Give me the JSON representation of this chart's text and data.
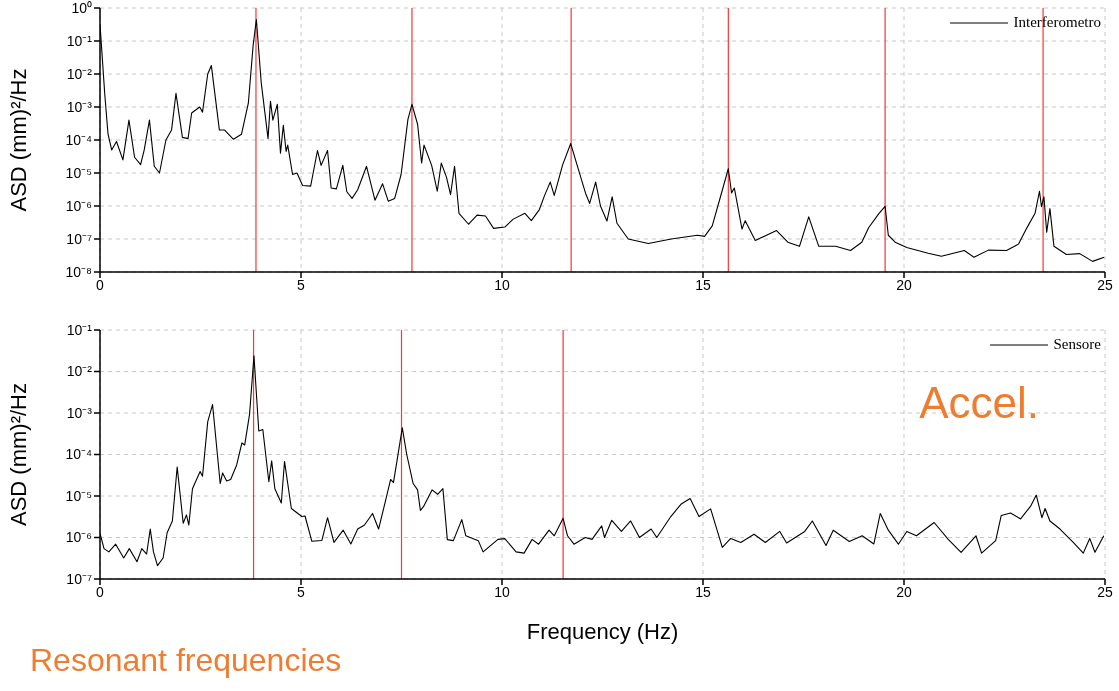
{
  "chart_data": [
    {
      "type": "line",
      "ylabel": "ASD (mm)²/Hz",
      "xlim": [
        0,
        25
      ],
      "xticks": [
        0,
        5,
        10,
        15,
        20,
        25
      ],
      "ylim": [
        1e-08,
        1
      ],
      "yticks": [
        {
          "value": 1e-08,
          "label": "10⁻⁸"
        },
        {
          "value": 1e-07,
          "label": "10⁻⁷"
        },
        {
          "value": 1e-06,
          "label": "10⁻⁶"
        },
        {
          "value": 1e-05,
          "label": "10⁻⁵"
        },
        {
          "value": 0.0001,
          "label": "10⁻⁴"
        },
        {
          "value": 0.001,
          "label": "10⁻³"
        },
        {
          "value": 0.01,
          "label": "10⁻²"
        },
        {
          "value": 0.1,
          "label": "10⁻¹"
        },
        {
          "value": 1,
          "label": "10⁰"
        }
      ],
      "log": "y",
      "grid": true,
      "legend": "top right",
      "ref_lines": [
        {
          "axis": "x",
          "value": 3.88,
          "color": "#ff3333"
        },
        {
          "axis": "x",
          "value": 7.76,
          "color": "#ff3333"
        },
        {
          "axis": "x",
          "value": 11.72,
          "color": "#ff3333"
        },
        {
          "axis": "x",
          "value": 15.63,
          "color": "#ff3333"
        },
        {
          "axis": "x",
          "value": 19.53,
          "color": "#ff3333"
        },
        {
          "axis": "x",
          "value": 23.46,
          "color": "#ff3333"
        }
      ],
      "series": [
        {
          "name": "Interferometro",
          "color": "#000000",
          "x": [
            0,
            0.12,
            0.2,
            0.29,
            0.41,
            0.57,
            0.72,
            0.86,
            1.01,
            1.1,
            1.23,
            1.35,
            1.48,
            1.64,
            1.78,
            1.89,
            2.05,
            2.19,
            2.28,
            2.48,
            2.55,
            2.68,
            2.77,
            2.97,
            3.1,
            3.32,
            3.52,
            3.69,
            3.81,
            3.89,
            4.01,
            4.18,
            4.24,
            4.3,
            4.41,
            4.49,
            4.56,
            4.63,
            4.67,
            4.79,
            4.9,
            5.04,
            5.24,
            5.41,
            5.5,
            5.66,
            5.75,
            5.88,
            6.04,
            6.14,
            6.27,
            6.41,
            6.63,
            6.84,
            7.03,
            7.17,
            7.33,
            7.49,
            7.66,
            7.76,
            7.9,
            8.0,
            8.06,
            8.25,
            8.39,
            8.49,
            8.62,
            8.72,
            8.82,
            8.93,
            9.17,
            9.38,
            9.59,
            9.79,
            10.07,
            10.28,
            10.57,
            10.73,
            10.93,
            11.06,
            11.2,
            11.3,
            11.51,
            11.71,
            11.87,
            12.08,
            12.18,
            12.33,
            12.45,
            12.61,
            12.74,
            12.86,
            13.14,
            13.64,
            14.21,
            14.86,
            15.04,
            15.23,
            15.48,
            15.63,
            15.71,
            15.78,
            15.97,
            16.05,
            16.3,
            16.83,
            17.11,
            17.4,
            17.63,
            17.88,
            18.3,
            18.67,
            18.95,
            19.12,
            19.37,
            19.53,
            19.61,
            19.78,
            20.07,
            20.6,
            20.93,
            21.5,
            21.74,
            22.1,
            22.55,
            22.85,
            23.05,
            23.26,
            23.37,
            23.42,
            23.48,
            23.55,
            23.63,
            23.73,
            24.04,
            24.37,
            24.69,
            24.98
          ],
          "values": [
            0.32,
            0.0023,
            0.00015,
            5e-05,
            9e-05,
            2.5e-05,
            0.0004,
            3e-05,
            1.8e-05,
            5e-05,
            0.0004,
            1.6e-05,
            1e-05,
            0.0001,
            0.0002,
            0.0026,
            0.00012,
            0.00011,
            0.00066,
            0.001,
            0.0007,
            0.01,
            0.018,
            0.0002,
            0.0002,
            0.000105,
            0.00015,
            0.0013,
            0.075,
            0.45,
            0.0056,
            0.00011,
            0.0015,
            0.0004,
            0.0012,
            4e-05,
            0.00028,
            4.5e-05,
            7e-05,
            9e-06,
            1e-05,
            4.2e-06,
            4e-06,
            4.8e-05,
            1.7e-05,
            4.8e-05,
            3.5e-06,
            3.3e-06,
            1.7e-05,
            2.7e-06,
            1.7e-06,
            3.1e-06,
            1.6e-05,
            1.5e-06,
            4.7e-06,
            1.4e-06,
            1.7e-06,
            9e-06,
            0.00042,
            0.0012,
            0.0003,
            2e-05,
            7e-05,
            1.7e-05,
            2.8e-06,
            2e-05,
            7.4e-06,
            2.2e-06,
            1.6e-05,
            6e-07,
            2.8e-07,
            5.3e-07,
            5e-07,
            2.1e-07,
            2.3e-07,
            4e-07,
            6e-07,
            3.6e-07,
            7.8e-07,
            2.1e-06,
            5.3e-06,
            2.1e-06,
            1.8e-05,
            7.8e-05,
            1.7e-05,
            2.4e-06,
            1.2e-06,
            5.3e-06,
            1e-06,
            3.5e-07,
            1.9e-06,
            3e-07,
            1e-07,
            7.3e-08,
            1e-07,
            1.3e-07,
            1.2e-07,
            2.5e-07,
            3e-06,
            1.35e-05,
            2.5e-06,
            3.5e-06,
            2e-07,
            3.6e-07,
            9e-08,
            1.8e-07,
            8e-08,
            6e-08,
            4.7e-07,
            6e-08,
            6e-08,
            4.5e-08,
            8e-08,
            2.2e-07,
            5.8e-07,
            9.8e-07,
            1.3e-07,
            8e-08,
            5.5e-08,
            3.7e-08,
            3e-08,
            4.5e-08,
            2.8e-08,
            4.6e-08,
            4.5e-08,
            7e-08,
            2.1e-07,
            6e-07,
            2.8e-06,
            9.5e-07,
            1.9e-06,
            1.6e-07,
            8.3e-07,
            6e-08,
            3.4e-08,
            3.6e-08,
            2.1e-08,
            2.8e-08
          ]
        }
      ]
    },
    {
      "type": "line",
      "xlabel": "Frequency (Hz)",
      "ylabel": "ASD (mm)²/Hz",
      "xlim": [
        0,
        25
      ],
      "xticks": [
        0,
        5,
        10,
        15,
        20,
        25
      ],
      "ylim": [
        1e-07,
        0.1
      ],
      "yticks": [
        {
          "value": 1e-07,
          "label": "10⁻⁷"
        },
        {
          "value": 1e-06,
          "label": "10⁻⁶"
        },
        {
          "value": 1e-05,
          "label": "10⁻⁵"
        },
        {
          "value": 0.0001,
          "label": "10⁻⁴"
        },
        {
          "value": 0.001,
          "label": "10⁻³"
        },
        {
          "value": 0.01,
          "label": "10⁻²"
        },
        {
          "value": 0.1,
          "label": "10⁻¹"
        }
      ],
      "log": "y",
      "grid": true,
      "legend": "top right",
      "annotations": [
        "Accel.",
        "Resonant frequencies"
      ],
      "ref_lines": [
        {
          "axis": "x",
          "value": 3.82,
          "color": "#ff3333"
        },
        {
          "axis": "x",
          "value": 7.5,
          "color": "#ff3333"
        },
        {
          "axis": "x",
          "value": 11.52,
          "color": "#ff3333"
        }
      ],
      "series": [
        {
          "name": "Sensore",
          "color": "#000000",
          "x": [
            0,
            0.1,
            0.22,
            0.39,
            0.59,
            0.73,
            0.92,
            1.04,
            1.16,
            1.25,
            1.33,
            1.43,
            1.57,
            1.67,
            1.8,
            1.92,
            2.07,
            2.15,
            2.21,
            2.3,
            2.49,
            2.55,
            2.68,
            2.8,
            2.99,
            3.05,
            3.15,
            3.25,
            3.4,
            3.53,
            3.6,
            3.72,
            3.83,
            3.95,
            4.05,
            4.2,
            4.27,
            4.35,
            4.51,
            4.59,
            4.76,
            5.02,
            5.1,
            5.27,
            5.52,
            5.66,
            5.82,
            6.05,
            6.24,
            6.41,
            6.58,
            6.78,
            6.93,
            7.07,
            7.23,
            7.3,
            7.52,
            7.63,
            7.79,
            7.9,
            7.97,
            8.05,
            8.26,
            8.4,
            8.53,
            8.64,
            8.79,
            9.0,
            9.1,
            9.41,
            9.53,
            9.9,
            10.07,
            10.35,
            10.55,
            10.75,
            10.91,
            11.17,
            11.3,
            11.52,
            11.63,
            11.79,
            12.07,
            12.24,
            12.48,
            12.55,
            12.73,
            12.97,
            13.2,
            13.42,
            13.71,
            13.85,
            14.2,
            14.45,
            14.68,
            14.9,
            15.19,
            15.48,
            15.69,
            15.94,
            16.27,
            16.55,
            16.91,
            17.08,
            17.53,
            17.72,
            18.06,
            18.24,
            18.64,
            18.96,
            19.25,
            19.41,
            19.61,
            19.86,
            20.07,
            20.31,
            20.75,
            21.1,
            21.42,
            21.79,
            21.93,
            22.28,
            22.42,
            22.65,
            22.9,
            23.15,
            23.29,
            23.43,
            23.51,
            23.63,
            23.88,
            24.21,
            24.46,
            24.62,
            24.75,
            24.97
          ],
          "values": [
            1.25e-06,
            5.4e-07,
            4.5e-07,
            6.9e-07,
            3.2e-07,
            5.4e-07,
            2.6e-07,
            5.4e-07,
            4e-07,
            1.6e-06,
            4.5e-07,
            2.1e-07,
            3.2e-07,
            1.3e-06,
            2.5e-06,
            5e-05,
            2.2e-06,
            3.5e-06,
            2e-06,
            1.5e-05,
            3.9e-05,
            3e-05,
            0.00062,
            0.0016,
            2e-05,
            3.6e-05,
            2.3e-05,
            2.5e-05,
            5.6e-05,
            0.00019,
            0.00017,
            0.00093,
            0.024,
            0.00037,
            0.0004,
            2.2e-05,
            7e-05,
            1.5e-05,
            6.8e-06,
            6.8e-05,
            5e-06,
            3.2e-06,
            3.3e-06,
            8.1e-07,
            8.5e-07,
            3e-06,
            7.6e-07,
            1.5e-06,
            7e-07,
            1.6e-06,
            2e-06,
            3.8e-06,
            1.6e-06,
            5.7e-06,
            2.5e-05,
            2.1e-05,
            0.00044,
            0.0001,
            2e-05,
            1.4e-05,
            4.5e-06,
            5.6e-06,
            1.4e-05,
            1.1e-05,
            1.5e-05,
            8.9e-07,
            8.4e-07,
            2.7e-06,
            1.1e-06,
            8.4e-07,
            4.5e-07,
            9e-07,
            9.4e-07,
            4.5e-07,
            4.2e-07,
            9e-07,
            6.9e-07,
            1.5e-06,
            1.1e-06,
            2.9e-06,
            1.1e-06,
            6.9e-07,
            1e-06,
            9e-07,
            1.9e-06,
            1e-06,
            2.6e-06,
            1.4e-06,
            2.5e-06,
            1e-06,
            1.6e-06,
            1e-06,
            3.2e-06,
            6.3e-06,
            8.7e-06,
            3.2e-06,
            4.9e-06,
            5.8e-07,
            9.5e-07,
            7.6e-07,
            1.2e-06,
            7.6e-07,
            1.4e-06,
            7.4e-07,
            1.4e-06,
            2.5e-06,
            6.4e-07,
            1.5e-06,
            8e-07,
            1.1e-06,
            7e-07,
            3.8e-06,
            1.5e-06,
            6.9e-07,
            1.4e-06,
            1.1e-06,
            2.3e-06,
            9e-07,
            4.4e-07,
            1.1e-06,
            4.2e-07,
            8.4e-07,
            3.4e-06,
            3.9e-06,
            2.8e-06,
            5.7e-06,
            1.05e-05,
            3e-06,
            5e-06,
            2.5e-06,
            1.6e-06,
            7.6e-07,
            4.2e-07,
            9.5e-07,
            4.4e-07,
            1.1e-06
          ]
        }
      ]
    }
  ]
}
